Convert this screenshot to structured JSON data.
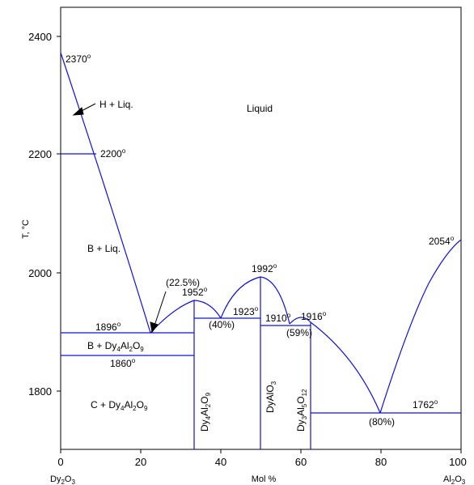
{
  "diagram": {
    "y_axis_label": "T, °C",
    "x_axis_label": "Mol %",
    "x_left_compound": {
      "base": "Dy",
      "s1": "2",
      "mid": "O",
      "s2": "3"
    },
    "x_right_compound": {
      "base": "Al",
      "s1": "2",
      "mid": "O",
      "s2": "3"
    },
    "x_ticks": [
      "0",
      "20",
      "40",
      "60",
      "80",
      "100"
    ],
    "y_ticks": [
      "1800",
      "2000",
      "2200",
      "2400"
    ],
    "colors": {
      "line": "#1010e0",
      "axis": "#000000",
      "text": "#000000"
    },
    "regions": {
      "liquid": "Liquid",
      "h_liq": "H + Liq.",
      "b_liq": "B + Liq.",
      "b_dy4": {
        "pre": "B + Dy",
        "s1": "4",
        "mid": "Al",
        "s2": "2",
        "post": "O",
        "s3": "9"
      },
      "c_dy4": {
        "pre": "C + Dy",
        "s1": "4",
        "mid": "Al",
        "s2": "2",
        "post": "O",
        "s3": "9"
      }
    },
    "phases": {
      "dy4al2o9": {
        "a": "Dy",
        "s1": "4",
        "b": "Al",
        "s2": "2",
        "c": "O",
        "s3": "9"
      },
      "dyalo3": {
        "a": "DyAlO",
        "s1": "3"
      },
      "dy3al5o12": {
        "a": "Dy",
        "s1": "3",
        "b": "Al",
        "s2": "5",
        "c": "O",
        "s3": "12"
      }
    },
    "temperatures": {
      "t2370": "2370",
      "t2200": "2200",
      "t2054": "2054",
      "t1992": "1992",
      "t1952": "1952",
      "t1923": "1923",
      "t1910": "1910",
      "t1916": "1916",
      "t1896": "1896",
      "t1860": "1860",
      "t1762": "1762"
    },
    "degree_mark": "o",
    "compositions": {
      "c225": "(22.5%)",
      "c40": "(40%)",
      "c59": "(59%)",
      "c80": "(80%)"
    }
  }
}
